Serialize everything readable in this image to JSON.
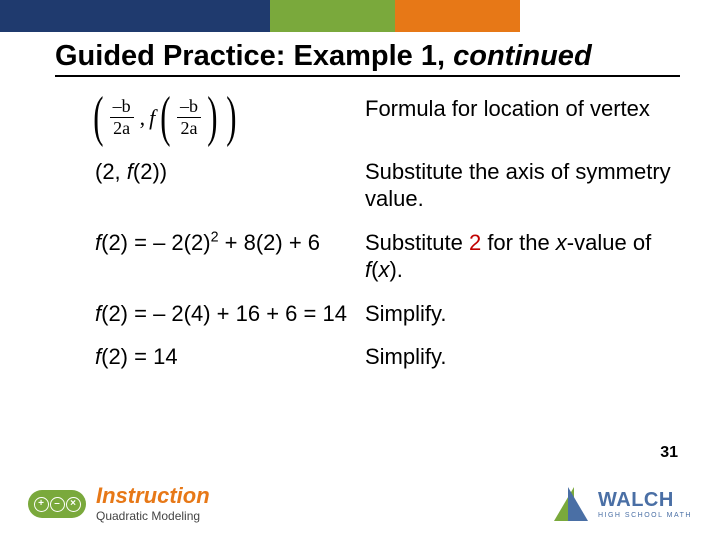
{
  "colors": {
    "navy": "#1f3a6e",
    "green": "#7aa93c",
    "orange": "#e77817",
    "highlight_red": "#c00000",
    "text": "#000000",
    "background": "#ffffff"
  },
  "title": {
    "prefix": "Guided Practice: Example 1, ",
    "italic_suffix": "continued"
  },
  "vertex_formula": {
    "frac_num": "–b",
    "frac_den": "2a",
    "f_letter": "f",
    "comma": ","
  },
  "rows": [
    {
      "left_type": "formula",
      "right": "Formula for location of vertex"
    },
    {
      "left_html": "(2, <span class='fi'>f</span>(2))",
      "right": "Substitute the axis of symmetry value."
    },
    {
      "left_html": "<span class='fi'>f</span>(2) = – 2(2)<sup>2</sup> + 8(2) + 6",
      "right_html": "Substitute <span class='sub-red'>2</span> for the <span class='fi'>x</span>-value of <span class='fi'>f</span>(<span class='fi'>x</span>)."
    },
    {
      "left_html": "<span class='fi'>f</span>(2) = – 2(4) + 16 + 6 = 14",
      "right": "Simplify."
    },
    {
      "left_html": "<span class='fi'>f</span>(2) = 14",
      "right": "Simplify."
    }
  ],
  "page_number": "31",
  "footer": {
    "badge_ops": [
      "+",
      "–",
      "×"
    ],
    "instruction_word": "Instruction",
    "instruction_sub": "Quadratic Modeling",
    "brand_name": "WALCH",
    "brand_sub": "HIGH SCHOOL MATH"
  }
}
